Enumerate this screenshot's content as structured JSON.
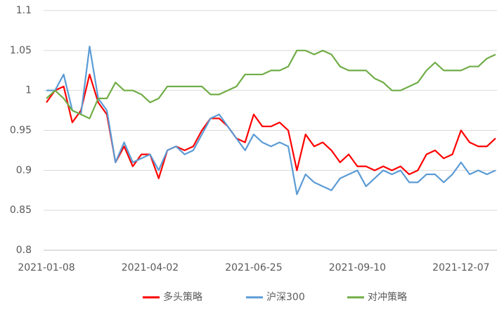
{
  "chart_data": {
    "type": "line",
    "categories": [
      "2021-01-08",
      null,
      null,
      null,
      null,
      null,
      null,
      null,
      null,
      null,
      null,
      null,
      "2021-04-02",
      null,
      null,
      null,
      null,
      null,
      null,
      null,
      null,
      null,
      null,
      null,
      "2021-06-25",
      null,
      null,
      null,
      null,
      null,
      null,
      null,
      null,
      null,
      null,
      null,
      "2021-09-10",
      null,
      null,
      null,
      null,
      null,
      null,
      null,
      null,
      null,
      null,
      null,
      "2021-12-07",
      null,
      null,
      null,
      null
    ],
    "series": [
      {
        "name": "多头策略",
        "color": "#ff0000",
        "values": [
          0.985,
          1.0,
          1.005,
          0.96,
          0.975,
          1.02,
          0.985,
          0.97,
          0.91,
          0.93,
          0.905,
          0.92,
          0.92,
          0.89,
          0.925,
          0.93,
          0.925,
          0.93,
          0.95,
          0.965,
          0.965,
          0.955,
          0.94,
          0.935,
          0.97,
          0.955,
          0.955,
          0.96,
          0.95,
          0.9,
          0.945,
          0.93,
          0.935,
          0.925,
          0.91,
          0.92,
          0.905,
          0.905,
          0.9,
          0.905,
          0.9,
          0.905,
          0.895,
          0.9,
          0.92,
          0.925,
          0.915,
          0.92,
          0.95,
          0.935,
          0.93,
          0.93,
          0.94
        ]
      },
      {
        "name": "沪深300",
        "color": "#5b9bd5",
        "values": [
          1.0,
          1.0,
          1.02,
          0.975,
          0.97,
          1.055,
          0.99,
          0.975,
          0.91,
          0.935,
          0.91,
          0.915,
          0.92,
          0.9,
          0.925,
          0.93,
          0.92,
          0.925,
          0.945,
          0.965,
          0.97,
          0.955,
          0.94,
          0.925,
          0.945,
          0.935,
          0.93,
          0.935,
          0.93,
          0.87,
          0.895,
          0.885,
          0.88,
          0.875,
          0.89,
          0.895,
          0.9,
          0.88,
          0.89,
          0.9,
          0.895,
          0.9,
          0.885,
          0.885,
          0.895,
          0.895,
          0.885,
          0.895,
          0.91,
          0.895,
          0.9,
          0.895,
          0.9
        ]
      },
      {
        "name": "对冲策略",
        "color": "#70ad47",
        "values": [
          0.99,
          1.0,
          0.99,
          0.975,
          0.97,
          0.965,
          0.99,
          0.99,
          1.01,
          1.0,
          1.0,
          0.995,
          0.985,
          0.99,
          1.005,
          1.005,
          1.005,
          1.005,
          1.005,
          0.995,
          0.995,
          1.0,
          1.005,
          1.02,
          1.02,
          1.02,
          1.025,
          1.025,
          1.03,
          1.05,
          1.05,
          1.045,
          1.05,
          1.045,
          1.03,
          1.025,
          1.025,
          1.025,
          1.015,
          1.01,
          1.0,
          1.0,
          1.005,
          1.01,
          1.025,
          1.035,
          1.025,
          1.025,
          1.025,
          1.03,
          1.03,
          1.04,
          1.045
        ]
      }
    ],
    "ylim": [
      0.8,
      1.1
    ],
    "yticks": [
      0.8,
      0.85,
      0.9,
      0.95,
      1,
      1.05,
      1.1
    ],
    "grid": true,
    "legend": "bottom"
  }
}
